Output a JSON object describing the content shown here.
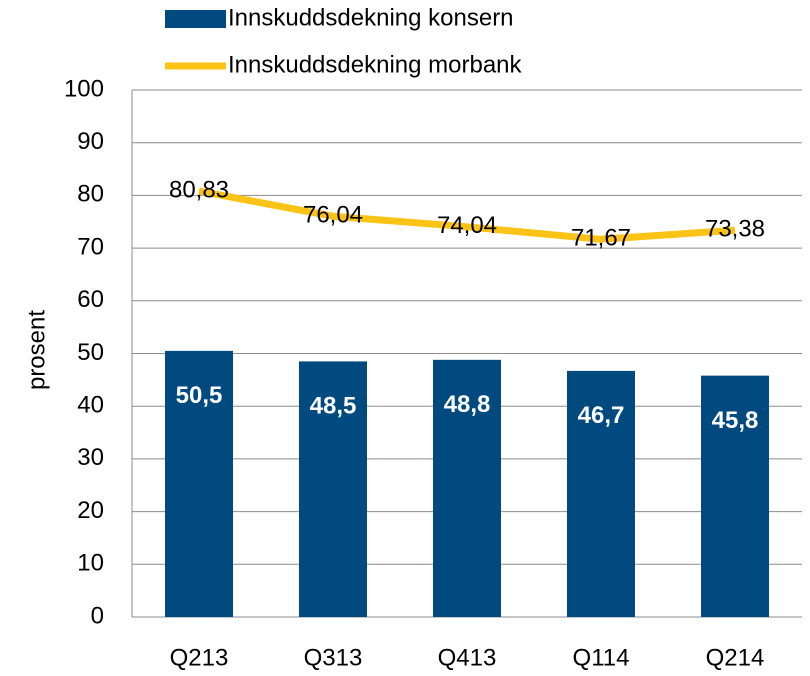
{
  "chart_data": {
    "type": "combo",
    "categories": [
      "Q213",
      "Q313",
      "Q413",
      "Q114",
      "Q214"
    ],
    "series": [
      {
        "name": "Innskuddsdekning konsern",
        "type": "bar",
        "color": "#004a80",
        "values": [
          50.5,
          48.5,
          48.8,
          46.7,
          45.8
        ],
        "value_labels": [
          "50,5",
          "48,5",
          "48,8",
          "46,7",
          "45,8"
        ]
      },
      {
        "name": "Innskuddsdekning morbank",
        "type": "line",
        "color": "#fcc317",
        "values": [
          80.83,
          76.04,
          74.04,
          71.67,
          73.38
        ],
        "value_labels": [
          "80,83",
          "76,04",
          "74,04",
          "71,67",
          "73,38"
        ]
      }
    ],
    "ylabel": "prosent",
    "ylim": [
      0,
      100
    ],
    "yticks": [
      0,
      10,
      20,
      30,
      40,
      50,
      60,
      70,
      80,
      90,
      100
    ],
    "grid": true
  }
}
